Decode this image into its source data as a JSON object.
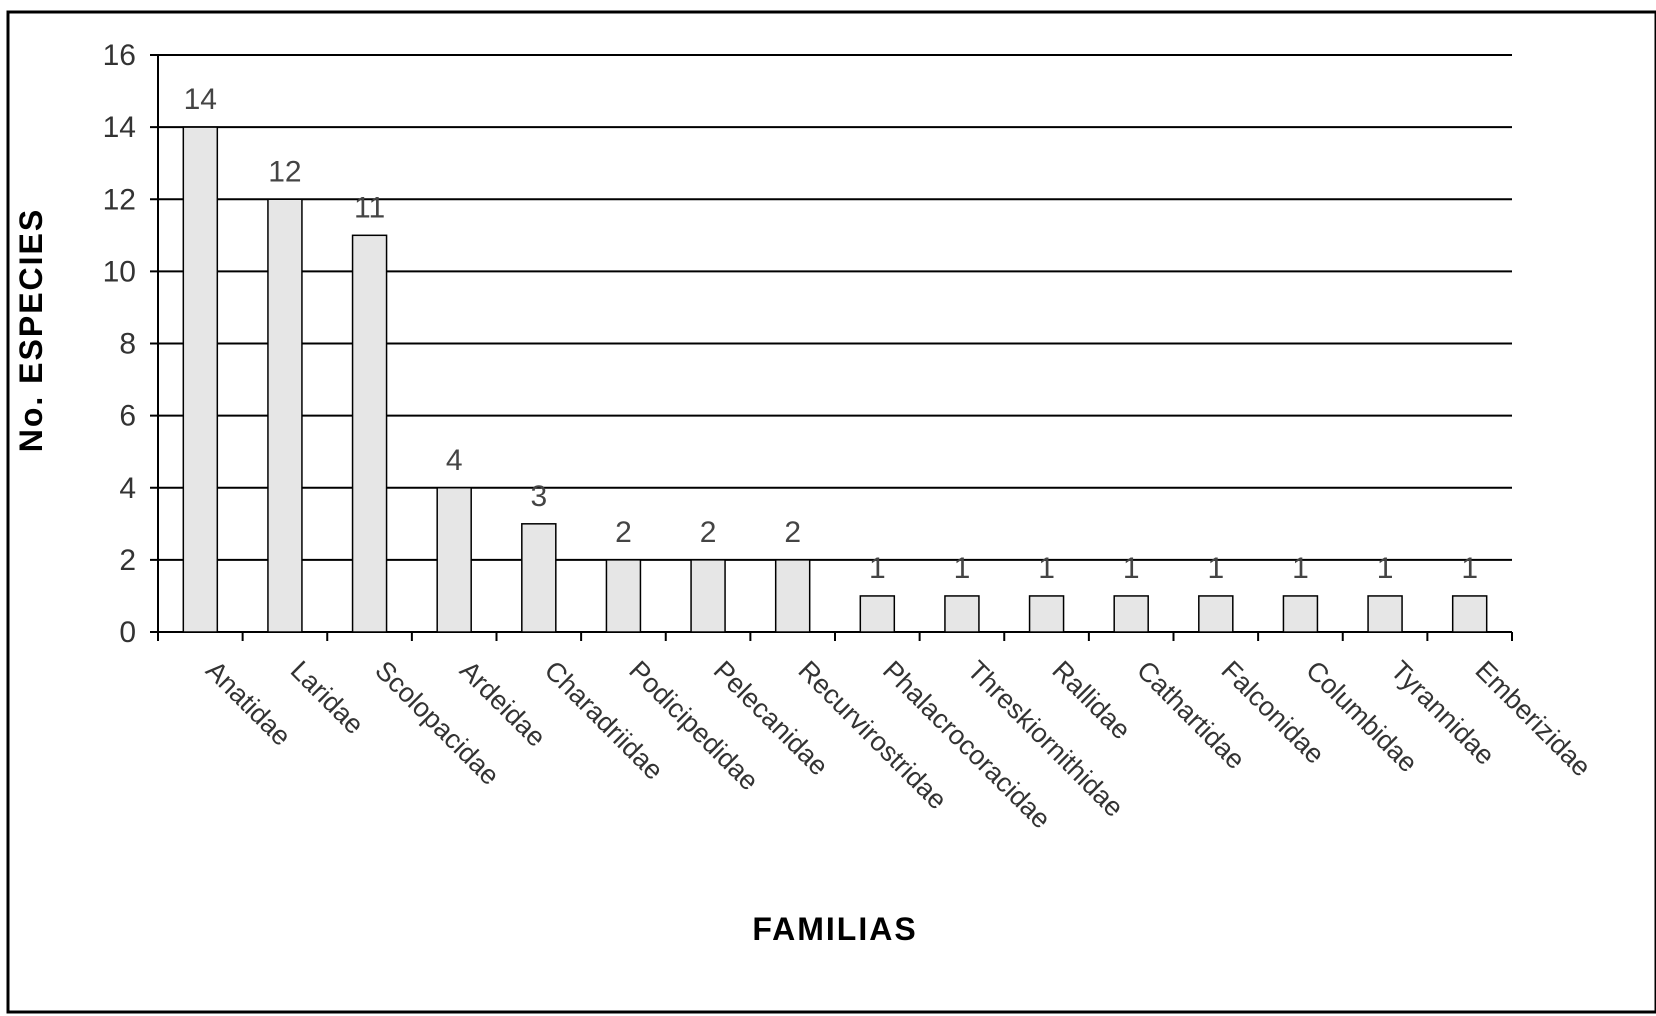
{
  "chart_data": {
    "type": "bar",
    "categories": [
      "Anatidae",
      "Laridae",
      "Scolopacidae",
      "Ardeidae",
      "Charadriidae",
      "Podicipedidae",
      "Pelecanidae",
      "Recurvirostridae",
      "Phalacrocoracidae",
      "Threskiornithidae",
      "Rallidae",
      "Cathartidae",
      "Falconidae",
      "Columbidae",
      "Tyrannidae",
      "Emberizidae"
    ],
    "values": [
      14,
      12,
      11,
      4,
      3,
      2,
      2,
      2,
      1,
      1,
      1,
      1,
      1,
      1,
      1,
      1
    ],
    "data_labels": [
      "14",
      "12",
      "11",
      "4",
      "3",
      "2",
      "2",
      "2",
      "1",
      "1",
      "1",
      "1",
      "1",
      "1",
      "1",
      "1"
    ],
    "xlabel": "FAMILIAS",
    "ylabel": "No. ESPECIES",
    "ylim": [
      0,
      16
    ],
    "yticks": [
      "0",
      "2",
      "4",
      "6",
      "8",
      "10",
      "12",
      "14",
      "16"
    ],
    "grid": true,
    "legend": "none",
    "colors": {
      "bar": "#e6e6e6",
      "bar_stroke": "#000000",
      "grid": "#000000",
      "frame": "#000000"
    }
  }
}
